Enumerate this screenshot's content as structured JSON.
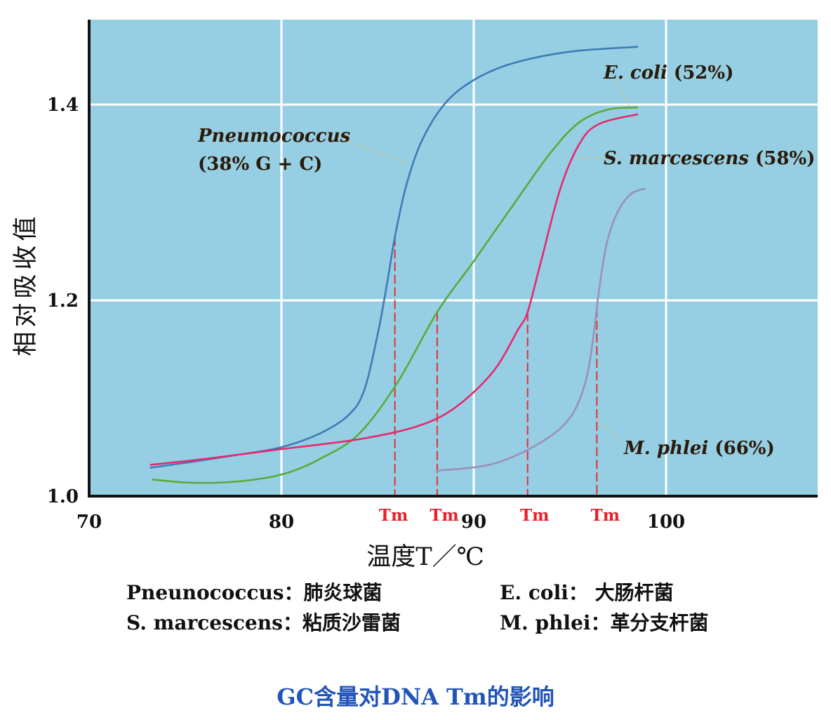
{
  "chart_data": {
    "type": "line",
    "xlabel": "温度T／℃",
    "ylabel": "相对吸收值",
    "x_ticks": [
      "70",
      "80",
      "90",
      "100"
    ],
    "y_ticks": [
      "1.0",
      "1.2",
      "1.4"
    ],
    "xlim": [
      70,
      108
    ],
    "ylim": [
      1.0,
      1.48
    ],
    "grid": true,
    "tm_label": "Tm",
    "series": [
      {
        "name": "Pneumococcus (38% G + C)",
        "label_lines": [
          "Pneumococcus",
          "(38% G + C)"
        ],
        "color": "#3f7bb8",
        "tm": 85.9,
        "x": [
          73.2,
          75,
          78,
          80,
          82,
          83.5,
          84.3,
          85.0,
          85.5,
          85.9,
          86.5,
          87.3,
          88.5,
          90,
          92,
          95,
          98.5
        ],
        "y": [
          1.029,
          1.034,
          1.043,
          1.05,
          1.064,
          1.083,
          1.108,
          1.165,
          1.218,
          1.265,
          1.318,
          1.363,
          1.401,
          1.425,
          1.442,
          1.454,
          1.459
        ]
      },
      {
        "name": "E. coli (52%)",
        "label_lines": [
          "E. coli (52%)"
        ],
        "color": "#5aaa3a",
        "tm": 88.1,
        "x": [
          73.3,
          75,
          77,
          79,
          80.5,
          82,
          84,
          86,
          88.1,
          90,
          92,
          94,
          95.5,
          97,
          98.5
        ],
        "y": [
          1.017,
          1.014,
          1.014,
          1.018,
          1.025,
          1.038,
          1.063,
          1.115,
          1.188,
          1.24,
          1.296,
          1.351,
          1.382,
          1.395,
          1.397
        ]
      },
      {
        "name": "S. marcescens (58%)",
        "label_lines": [
          "S. marcescens (58%)"
        ],
        "color": "#e8286e",
        "tm": 92.8,
        "x": [
          73.2,
          76,
          80,
          84,
          87,
          89,
          91,
          92.3,
          92.8,
          93.5,
          94.5,
          95.5,
          96.5,
          98.5
        ],
        "y": [
          1.032,
          1.038,
          1.048,
          1.058,
          1.071,
          1.09,
          1.127,
          1.17,
          1.188,
          1.24,
          1.314,
          1.36,
          1.38,
          1.39
        ]
      },
      {
        "name": "M. phlei (66%)",
        "label_lines": [
          "M. phlei (66%)"
        ],
        "color": "#9b90b8",
        "tm": 96.4,
        "x": [
          88.1,
          91,
          93.5,
          95,
          95.8,
          96.2,
          96.5,
          96.9,
          97.5,
          98.2,
          98.9
        ],
        "y": [
          1.026,
          1.033,
          1.055,
          1.08,
          1.116,
          1.16,
          1.208,
          1.257,
          1.291,
          1.309,
          1.314
        ]
      }
    ]
  },
  "legend": {
    "row1": [
      "Pneunococcus：肺炎球菌",
      "E. coli：  大肠杆菌"
    ],
    "row2": [
      "S. marcescens：粘质沙雷菌",
      "M. phlei：革分支杆菌"
    ]
  },
  "caption": "GC含量对DNA Tm的影响"
}
